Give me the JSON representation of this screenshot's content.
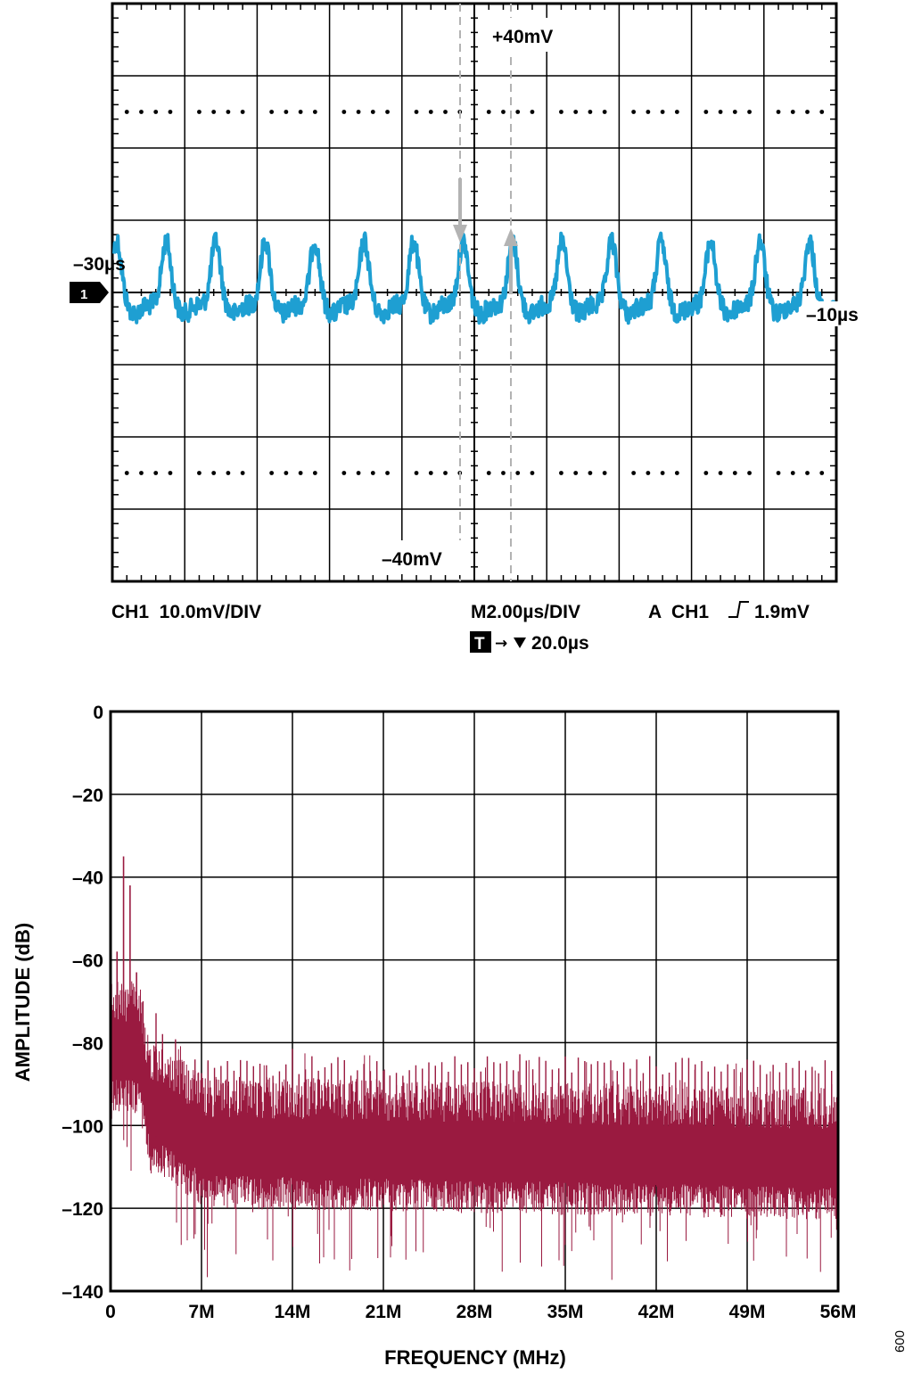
{
  "scope": {
    "type": "line",
    "marker_top_label": "+40mV",
    "marker_bottom_label": "–40mV",
    "cursor_left_label": "–30µs",
    "cursor_right_label": "–10µs",
    "channel_marker": "1",
    "channel_scale": "CH1  10.0mV/DIV",
    "timebase": "M2.00µs/DIV",
    "trigger_label": "A  CH1",
    "trigger_level": "1.9mV",
    "trigger_marker": "T",
    "trigger_delay": "20.0µs",
    "grid_divisions": {
      "x": 10,
      "y": 8
    },
    "trace_color": "#1e9fd2",
    "grid_color": "#000000",
    "cursor_color": "#b3b3b3"
  },
  "spectrum": {
    "type": "line",
    "xlabel": "FREQUENCY (MHz)",
    "ylabel": "AMPLITUDE (dB)",
    "xlim": [
      0,
      56
    ],
    "ylim": [
      -140,
      0
    ],
    "xticks": [
      "0",
      "7M",
      "14M",
      "21M",
      "28M",
      "35M",
      "42M",
      "49M",
      "56M"
    ],
    "yticks": [
      "0",
      "–20",
      "–40",
      "–60",
      "–80",
      "–100",
      "–120",
      "–140"
    ],
    "trace_color": "#9a1a40",
    "noise_floor_db": -105,
    "fundamental_mhz": 0.5,
    "peaks": [
      {
        "freq_mhz": 1.0,
        "db": -35
      },
      {
        "freq_mhz": 1.5,
        "db": -42
      },
      {
        "freq_mhz": 0.5,
        "db": -58
      },
      {
        "freq_mhz": 2.0,
        "db": -63
      }
    ]
  },
  "figure_id": "009"
}
